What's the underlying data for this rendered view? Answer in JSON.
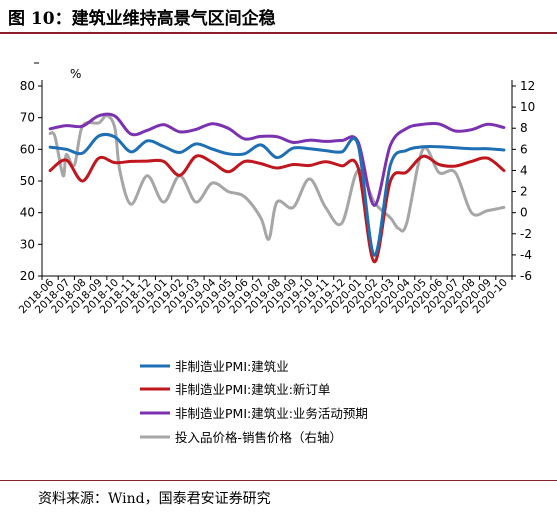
{
  "figure": {
    "title": "图 10：建筑业维持高景气区间企稳",
    "source": "资料来源：Wind，国泰君安证券研究"
  },
  "chart_data": {
    "type": "line",
    "y_unit_label": "%",
    "y_left": {
      "ylim": [
        20,
        80
      ],
      "ticks": [
        20,
        30,
        40,
        50,
        60,
        70,
        80
      ]
    },
    "y_right": {
      "ylim": [
        -6,
        12
      ],
      "ticks": [
        -6,
        -4,
        -2,
        0,
        2,
        4,
        6,
        8,
        10,
        12
      ]
    },
    "x_tick_labels": [
      "2018-06",
      "2018-07",
      "2018-08",
      "2018-09",
      "2018-10",
      "2018-11",
      "2018-12",
      "2019-01",
      "2019-02",
      "2019-03",
      "2019-04",
      "2019-05",
      "2019-06",
      "2019-07",
      "2019-08",
      "2019-09",
      "2019-10",
      "2019-11",
      "2019-12",
      "2020-01",
      "2020-02",
      "2020-03",
      "2020-04",
      "2020-05",
      "2020-06",
      "2020-07",
      "2020-08",
      "2020-09",
      "2020-10"
    ],
    "x_count": 29,
    "legend_position": "bottom",
    "series": [
      {
        "name": "非制造业PMI:建筑业",
        "axis": "left",
        "color": "#1f6fb5",
        "x": [
          0,
          1,
          2,
          3,
          4,
          5,
          6,
          7,
          8,
          9,
          10,
          11,
          12,
          13,
          14,
          15,
          16,
          17,
          18,
          19,
          20,
          21,
          22,
          23,
          24,
          25,
          26,
          27,
          28
        ],
        "values": [
          60.7,
          60.0,
          58.8,
          64.2,
          63.9,
          59.2,
          62.7,
          60.9,
          59.0,
          61.7,
          60.1,
          58.6,
          58.6,
          61.4,
          57.4,
          60.4,
          60.2,
          59.6,
          59.2,
          61.5,
          26.6,
          55.1,
          59.7,
          60.8,
          60.8,
          60.5,
          60.2,
          60.2,
          59.8
        ]
      },
      {
        "name": "非制造业PMI:建筑业:新订单",
        "axis": "left",
        "color": "#c0161e",
        "x": [
          0,
          1,
          2,
          3,
          4,
          5,
          6,
          7,
          8,
          9,
          10,
          11,
          12,
          13,
          14,
          15,
          16,
          17,
          18,
          19,
          20,
          21,
          22,
          23,
          24,
          25,
          26,
          27,
          28
        ],
        "values": [
          53.3,
          56.6,
          50.0,
          57.2,
          55.8,
          56.2,
          56.3,
          56.2,
          51.8,
          57.8,
          55.9,
          52.9,
          56.2,
          55.5,
          54.1,
          55.2,
          54.9,
          56.1,
          54.8,
          54.3,
          24.5,
          50.0,
          52.8,
          57.8,
          55.2,
          54.7,
          56.2,
          57.2,
          53.3
        ]
      },
      {
        "name": "非制造业PMI:建筑业:业务活动预期",
        "axis": "left",
        "color": "#7b32b0",
        "x": [
          0,
          1,
          2,
          3,
          4,
          5,
          6,
          7,
          8,
          9,
          10,
          11,
          12,
          13,
          14,
          15,
          16,
          17,
          18,
          19,
          20,
          21,
          22,
          23,
          24,
          25,
          26,
          27,
          28
        ],
        "values": [
          66.5,
          67.5,
          67.3,
          70.6,
          70.5,
          64.8,
          66.0,
          67.8,
          65.5,
          66.3,
          68.1,
          66.6,
          63.3,
          64.1,
          64.0,
          62.2,
          62.9,
          62.5,
          62.8,
          62.4,
          42.3,
          61.3,
          66.6,
          67.9,
          68.0,
          65.8,
          66.2,
          67.9,
          66.9
        ]
      },
      {
        "name": "投入品价格-销售价格（右轴）",
        "axis": "right",
        "color": "#a6a6a6",
        "x": [
          0,
          0.3,
          0.8,
          1,
          1.5,
          2,
          3,
          3.5,
          4,
          4.3,
          5,
          6,
          7,
          8,
          9,
          10,
          11,
          12,
          13,
          13.5,
          14,
          15,
          16,
          17,
          18,
          19,
          20,
          21,
          21.5,
          22,
          23,
          24,
          25,
          26,
          27,
          28
        ],
        "values": [
          7.5,
          7.2,
          3.5,
          5.5,
          4.5,
          8.2,
          8.5,
          9.2,
          8.0,
          4.0,
          0.8,
          3.5,
          1.0,
          3.5,
          1.0,
          2.8,
          2.0,
          1.5,
          -0.5,
          -2.5,
          1.0,
          0.5,
          3.2,
          0.5,
          -1.0,
          4.0,
          1.0,
          -0.5,
          -1.5,
          -1.0,
          6.0,
          3.8,
          3.8,
          0.0,
          0.2,
          0.5
        ]
      }
    ]
  }
}
